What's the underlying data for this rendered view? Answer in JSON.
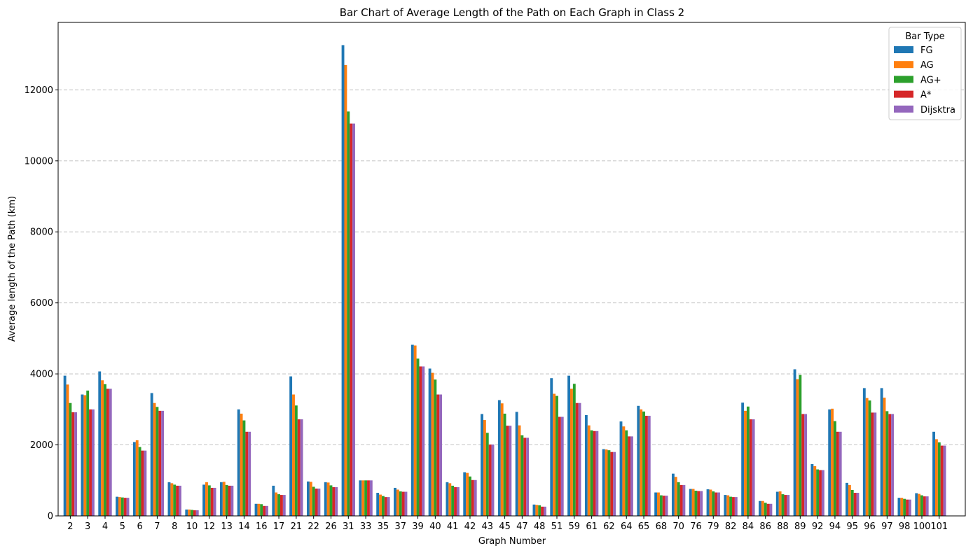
{
  "chart_data": {
    "type": "bar",
    "title": "Bar Chart of Average Length of the Path on Each Graph in Class 2",
    "xlabel": "Graph Number",
    "ylabel": "Average length of the Path (km)",
    "ylim": [
      0,
      13900
    ],
    "yticks": [
      0,
      2000,
      4000,
      6000,
      8000,
      10000,
      12000
    ],
    "grid": "horizontal dashed",
    "legend_title": "Bar Type",
    "legend_position": "top-right",
    "categories": [
      "2",
      "3",
      "4",
      "5",
      "6",
      "7",
      "8",
      "10",
      "12",
      "13",
      "14",
      "16",
      "17",
      "21",
      "22",
      "26",
      "31",
      "33",
      "35",
      "37",
      "39",
      "40",
      "41",
      "42",
      "43",
      "45",
      "47",
      "48",
      "51",
      "59",
      "61",
      "62",
      "64",
      "65",
      "68",
      "70",
      "76",
      "79",
      "82",
      "84",
      "86",
      "88",
      "89",
      "92",
      "94",
      "95",
      "96",
      "97",
      "98",
      "100",
      "101"
    ],
    "series": [
      {
        "name": "FG",
        "color": "#1f77b4",
        "values": [
          3950,
          3420,
          4070,
          540,
          2080,
          3460,
          950,
          180,
          880,
          950,
          3000,
          340,
          850,
          3930,
          970,
          950,
          13260,
          1000,
          650,
          790,
          4820,
          4150,
          950,
          1230,
          2870,
          3260,
          2930,
          320,
          3880,
          3950,
          2840,
          1880,
          2660,
          3100,
          660,
          1190,
          760,
          750,
          590,
          3190,
          420,
          680,
          4130,
          1460,
          3000,
          930,
          3600,
          3600,
          510,
          640,
          2370
        ]
      },
      {
        "name": "AG",
        "color": "#ff7f0e",
        "values": [
          3700,
          3400,
          3820,
          530,
          2130,
          3180,
          920,
          180,
          950,
          960,
          2880,
          340,
          660,
          3420,
          960,
          940,
          12700,
          1000,
          600,
          740,
          4800,
          4030,
          920,
          1210,
          2700,
          3170,
          2550,
          310,
          3440,
          3580,
          2550,
          1870,
          2520,
          3000,
          660,
          1100,
          760,
          740,
          580,
          2960,
          420,
          690,
          3850,
          1400,
          3020,
          870,
          3320,
          3330,
          510,
          620,
          2160
        ]
      },
      {
        "name": "AG+",
        "color": "#2ca02c",
        "values": [
          3180,
          3530,
          3710,
          520,
          1940,
          3070,
          880,
          170,
          860,
          870,
          2690,
          330,
          610,
          3110,
          820,
          860,
          11390,
          1000,
          560,
          690,
          4430,
          3840,
          850,
          1110,
          2340,
          2880,
          2270,
          300,
          3380,
          3720,
          2410,
          1850,
          2410,
          2940,
          580,
          950,
          710,
          690,
          540,
          3080,
          370,
          610,
          3970,
          1310,
          2670,
          730,
          3250,
          2950,
          480,
          580,
          2070
        ]
      },
      {
        "name": "A*",
        "color": "#d62728",
        "values": [
          2920,
          3000,
          3580,
          510,
          1840,
          2960,
          850,
          160,
          790,
          850,
          2370,
          280,
          590,
          2720,
          770,
          810,
          11050,
          1000,
          530,
          680,
          4210,
          3420,
          810,
          1010,
          2010,
          2540,
          2200,
          260,
          2790,
          3180,
          2390,
          1800,
          2240,
          2820,
          570,
          870,
          700,
          660,
          530,
          2720,
          340,
          590,
          2870,
          1290,
          2370,
          650,
          2910,
          2870,
          460,
          550,
          1980
        ]
      },
      {
        "name": "Dijsktra",
        "color": "#9467bd",
        "values": [
          2920,
          3000,
          3580,
          510,
          1840,
          2960,
          850,
          160,
          790,
          850,
          2370,
          280,
          590,
          2720,
          770,
          810,
          11050,
          1000,
          530,
          680,
          4210,
          3420,
          810,
          1010,
          2010,
          2540,
          2200,
          260,
          2790,
          3180,
          2390,
          1800,
          2240,
          2820,
          570,
          870,
          700,
          660,
          530,
          2720,
          340,
          590,
          2870,
          1290,
          2370,
          650,
          2910,
          2870,
          460,
          550,
          1980
        ]
      }
    ]
  }
}
